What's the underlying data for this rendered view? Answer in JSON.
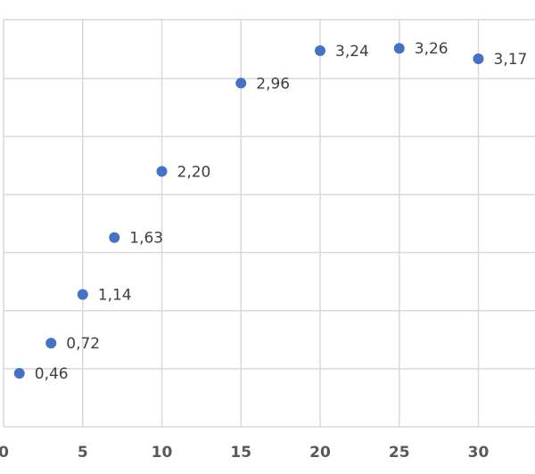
{
  "chart_data": {
    "type": "scatter",
    "title": "",
    "xlabel": "",
    "ylabel": "",
    "xlim": [
      0,
      35
    ],
    "ylim": [
      0,
      3.5
    ],
    "x_ticks": [
      0,
      5,
      10,
      15,
      20,
      25,
      30
    ],
    "x_tick_labels": [
      "0",
      "5",
      "10",
      "15",
      "20",
      "25",
      "30"
    ],
    "y_gridlines": [
      0.5,
      1.0,
      1.5,
      2.0,
      2.5,
      3.0
    ],
    "grid": true,
    "marker_color": "#4472c4",
    "series": [
      {
        "x": [
          1,
          3,
          5,
          7,
          10,
          15,
          20,
          25,
          30
        ],
        "y": [
          0.46,
          0.72,
          1.14,
          1.63,
          2.2,
          2.96,
          3.24,
          3.26,
          3.17
        ],
        "labels": [
          "0,46",
          "0,72",
          "1,14",
          "1,63",
          "2,20",
          "2,96",
          "3,24",
          "3,26",
          "3,17"
        ]
      }
    ]
  }
}
